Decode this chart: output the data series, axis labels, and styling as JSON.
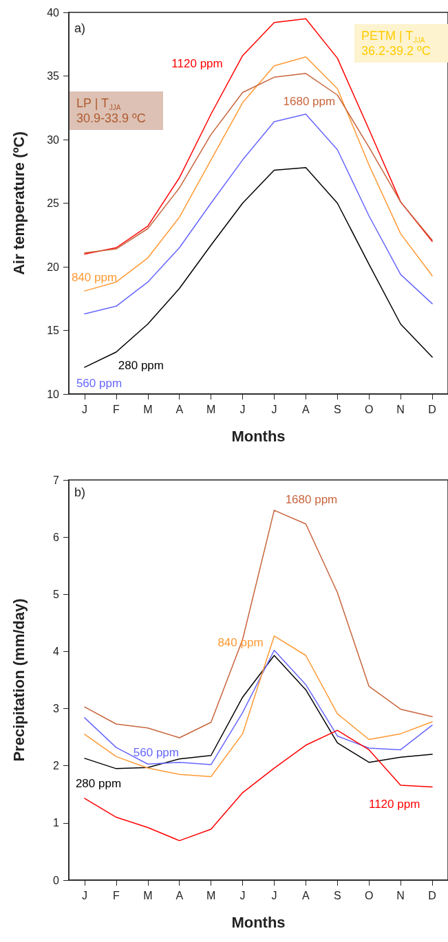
{
  "chart_data": [
    {
      "type": "line",
      "xlabel": "Months",
      "ylabel": "Air temperature (ºC)",
      "categories": [
        "J",
        "F",
        "M",
        "A",
        "M",
        "J",
        "J",
        "A",
        "S",
        "O",
        "N",
        "D"
      ],
      "ylim": [
        10,
        40
      ],
      "yticks": [
        10,
        15,
        20,
        25,
        30,
        35,
        40
      ],
      "grid": false,
      "legend": false,
      "marker": "none",
      "line_style": "solid",
      "annotations": [
        "a)",
        "LP | T$_{JJA}$\n30.9-33.9 ºC",
        "PETM | T$_{JJA}$\n36.2-39.2 ºC"
      ],
      "series": [
        {
          "name": "280 ppm",
          "color": "#000000",
          "values": [
            12.1,
            13.3,
            15.5,
            18.3,
            21.7,
            25.0,
            27.6,
            27.8,
            25.0,
            20.2,
            15.5,
            12.9
          ]
        },
        {
          "name": "560 ppm",
          "color": "#6666ff",
          "values": [
            16.3,
            16.9,
            18.8,
            21.5,
            25.0,
            28.4,
            31.4,
            32.0,
            29.2,
            24.0,
            19.4,
            17.1
          ]
        },
        {
          "name": "840 ppm",
          "color": "#ff9933",
          "values": [
            18.1,
            18.8,
            20.7,
            23.9,
            28.4,
            32.9,
            35.8,
            36.5,
            34.0,
            28.0,
            22.6,
            19.3
          ]
        },
        {
          "name": "1120 ppm",
          "color": "#ff0000",
          "values": [
            21.0,
            21.5,
            23.2,
            27.0,
            32.0,
            36.6,
            39.2,
            39.5,
            36.4,
            30.8,
            25.1,
            22.0
          ]
        },
        {
          "name": "1680 ppm",
          "color": "#c8643c",
          "values": [
            21.1,
            21.4,
            23.0,
            26.2,
            30.4,
            33.7,
            34.9,
            35.2,
            33.5,
            29.4,
            25.1,
            22.1
          ]
        }
      ]
    },
    {
      "type": "line",
      "xlabel": "Months",
      "ylabel": "Precipitation (mm/day)",
      "categories": [
        "J",
        "F",
        "M",
        "A",
        "M",
        "J",
        "J",
        "A",
        "S",
        "O",
        "N",
        "D"
      ],
      "ylim": [
        0,
        7
      ],
      "yticks": [
        0,
        1,
        2,
        3,
        4,
        5,
        6,
        7
      ],
      "grid": false,
      "legend": false,
      "marker": "none",
      "line_style": "solid",
      "annotations": [
        "b)"
      ],
      "series": [
        {
          "name": "280 ppm",
          "color": "#000000",
          "values": [
            2.13,
            1.95,
            1.97,
            2.12,
            2.18,
            3.2,
            3.93,
            3.33,
            2.4,
            2.06,
            2.15,
            2.2
          ]
        },
        {
          "name": "560 ppm",
          "color": "#6666ff",
          "values": [
            2.84,
            2.32,
            2.03,
            2.06,
            2.02,
            2.93,
            4.02,
            3.42,
            2.52,
            2.31,
            2.28,
            2.71
          ]
        },
        {
          "name": "840 ppm",
          "color": "#ff9933",
          "values": [
            2.55,
            2.16,
            1.96,
            1.85,
            1.81,
            2.56,
            4.27,
            3.93,
            2.91,
            2.46,
            2.56,
            2.77
          ]
        },
        {
          "name": "1120 ppm",
          "color": "#ff0000",
          "values": [
            1.43,
            1.1,
            0.92,
            0.69,
            0.89,
            1.53,
            1.96,
            2.36,
            2.62,
            2.28,
            1.66,
            1.63
          ]
        },
        {
          "name": "1680 ppm",
          "color": "#c8643c",
          "values": [
            3.03,
            2.73,
            2.66,
            2.49,
            2.76,
            4.21,
            6.47,
            6.23,
            5.03,
            3.39,
            2.99,
            2.86
          ]
        }
      ]
    }
  ]
}
